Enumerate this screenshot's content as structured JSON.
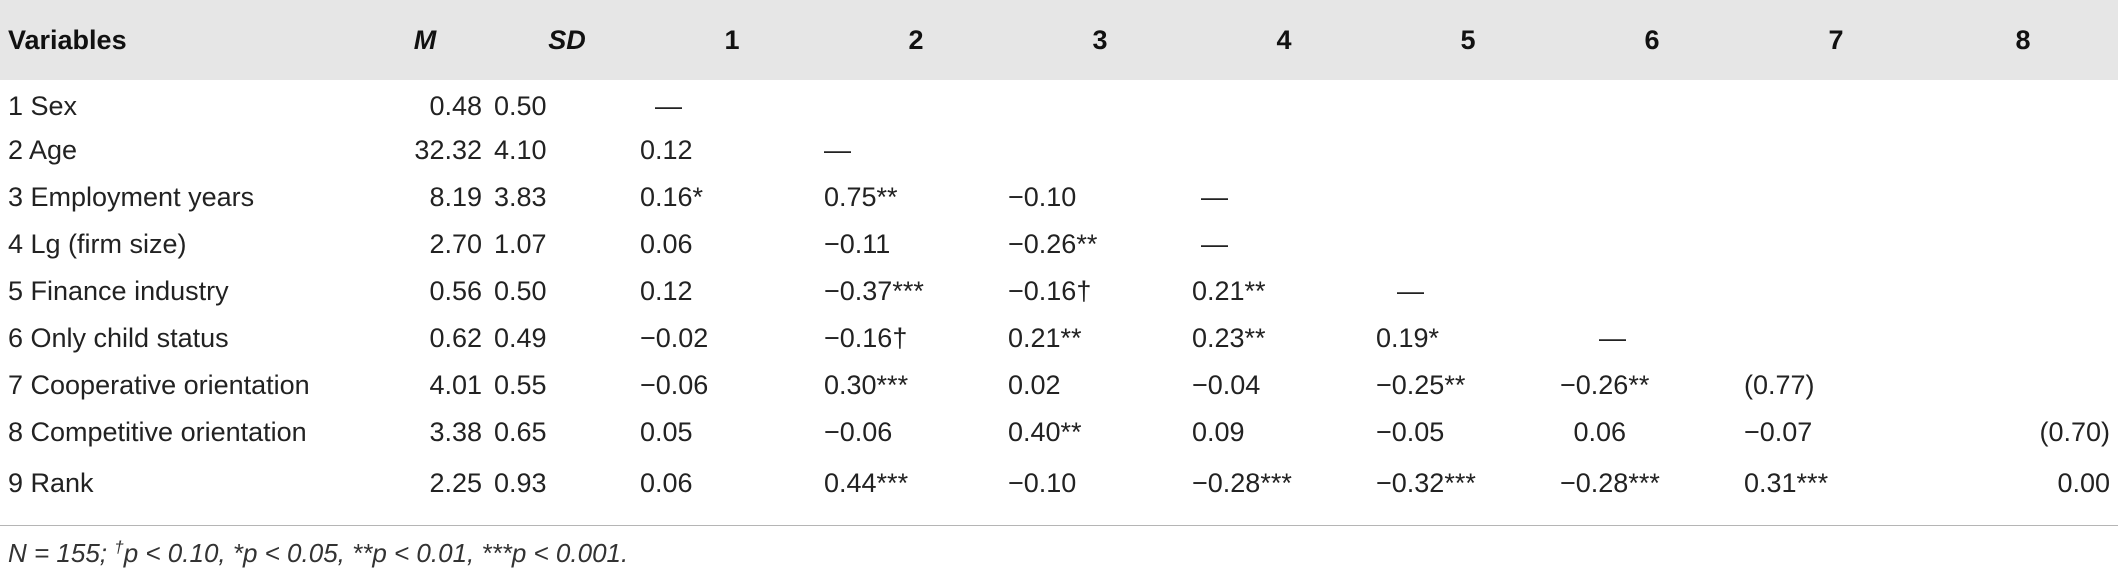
{
  "table": {
    "headers": [
      "Variables",
      "M",
      "SD",
      "1",
      "2",
      "3",
      "4",
      "5",
      "6",
      "7",
      "8"
    ],
    "rows": [
      [
        "1 Sex",
        "0.48",
        "0.50",
        "—",
        "",
        "",
        "",
        "",
        "",
        "",
        ""
      ],
      [
        "2 Age",
        "32.32",
        "4.10",
        "0.12",
        "—",
        "",
        "",
        "",
        "",
        "",
        ""
      ],
      [
        "3 Employment years",
        "8.19",
        "3.83",
        "0.16*",
        "0.75**",
        "−0.10",
        "—",
        "",
        "",
        "",
        ""
      ],
      [
        "4 Lg (firm size)",
        "2.70",
        "1.07",
        "0.06",
        "−0.11",
        "−0.26**",
        "—",
        "",
        "",
        "",
        ""
      ],
      [
        "5 Finance industry",
        "0.56",
        "0.50",
        "0.12",
        "−0.37***",
        "−0.16†",
        "0.21**",
        "—",
        "",
        "",
        ""
      ],
      [
        "6 Only child status",
        "0.62",
        "0.49",
        "−0.02",
        "−0.16†",
        "0.21**",
        "0.23**",
        "0.19*",
        "—",
        "",
        ""
      ],
      [
        "7 Cooperative orientation",
        "4.01",
        "0.55",
        "−0.06",
        "0.30***",
        "0.02",
        "−0.04",
        "−0.25**",
        "−0.26**",
        "(0.77)",
        ""
      ],
      [
        "8 Competitive orientation",
        "3.38",
        "0.65",
        "0.05",
        "−0.06",
        "0.40**",
        "0.09",
        "−0.05",
        "0.06",
        "−0.07",
        "(0.70)"
      ],
      [
        "9 Rank",
        "2.25",
        "0.93",
        "0.06",
        "0.44***",
        "−0.10",
        "−0.28***",
        "−0.32***",
        "−0.28***",
        "0.31***",
        "0.00"
      ]
    ]
  },
  "footnote": {
    "lead": "N = 155; ",
    "dagger": "†",
    "rest": "p < 0.10, *p < 0.05, **p < 0.01, ***p < 0.001."
  }
}
